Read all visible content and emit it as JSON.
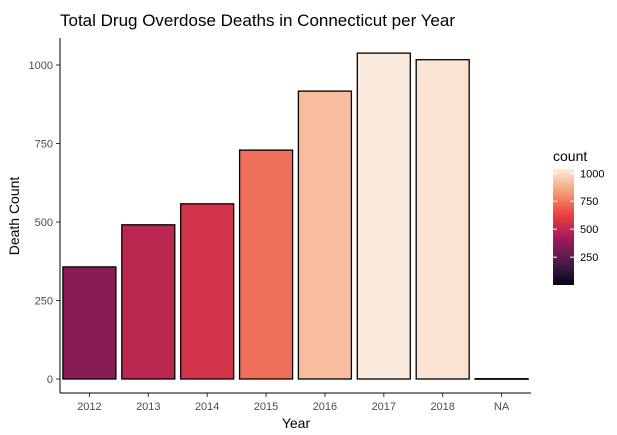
{
  "chart_data": {
    "type": "bar",
    "title": "Total Drug Overdose Deaths in Connecticut per Year",
    "xlabel": "Year",
    "ylabel": "Death Count",
    "categories": [
      "2012",
      "2013",
      "2014",
      "2015",
      "2016",
      "2017",
      "2018",
      "NA"
    ],
    "values": [
      357,
      491,
      558,
      729,
      917,
      1038,
      1017,
      1
    ],
    "ylim": [
      0,
      1080
    ],
    "yticks": [
      0,
      250,
      500,
      750,
      1000
    ],
    "grid": false,
    "legend": {
      "title": "count",
      "placement": "right",
      "ticks": [
        250,
        500,
        750,
        1000
      ],
      "range": [
        1,
        1038
      ],
      "colors": [
        "#03051a",
        "#4c1d4b",
        "#a11a5b",
        "#e83f3f",
        "#f69c73",
        "#faebdd"
      ]
    }
  }
}
